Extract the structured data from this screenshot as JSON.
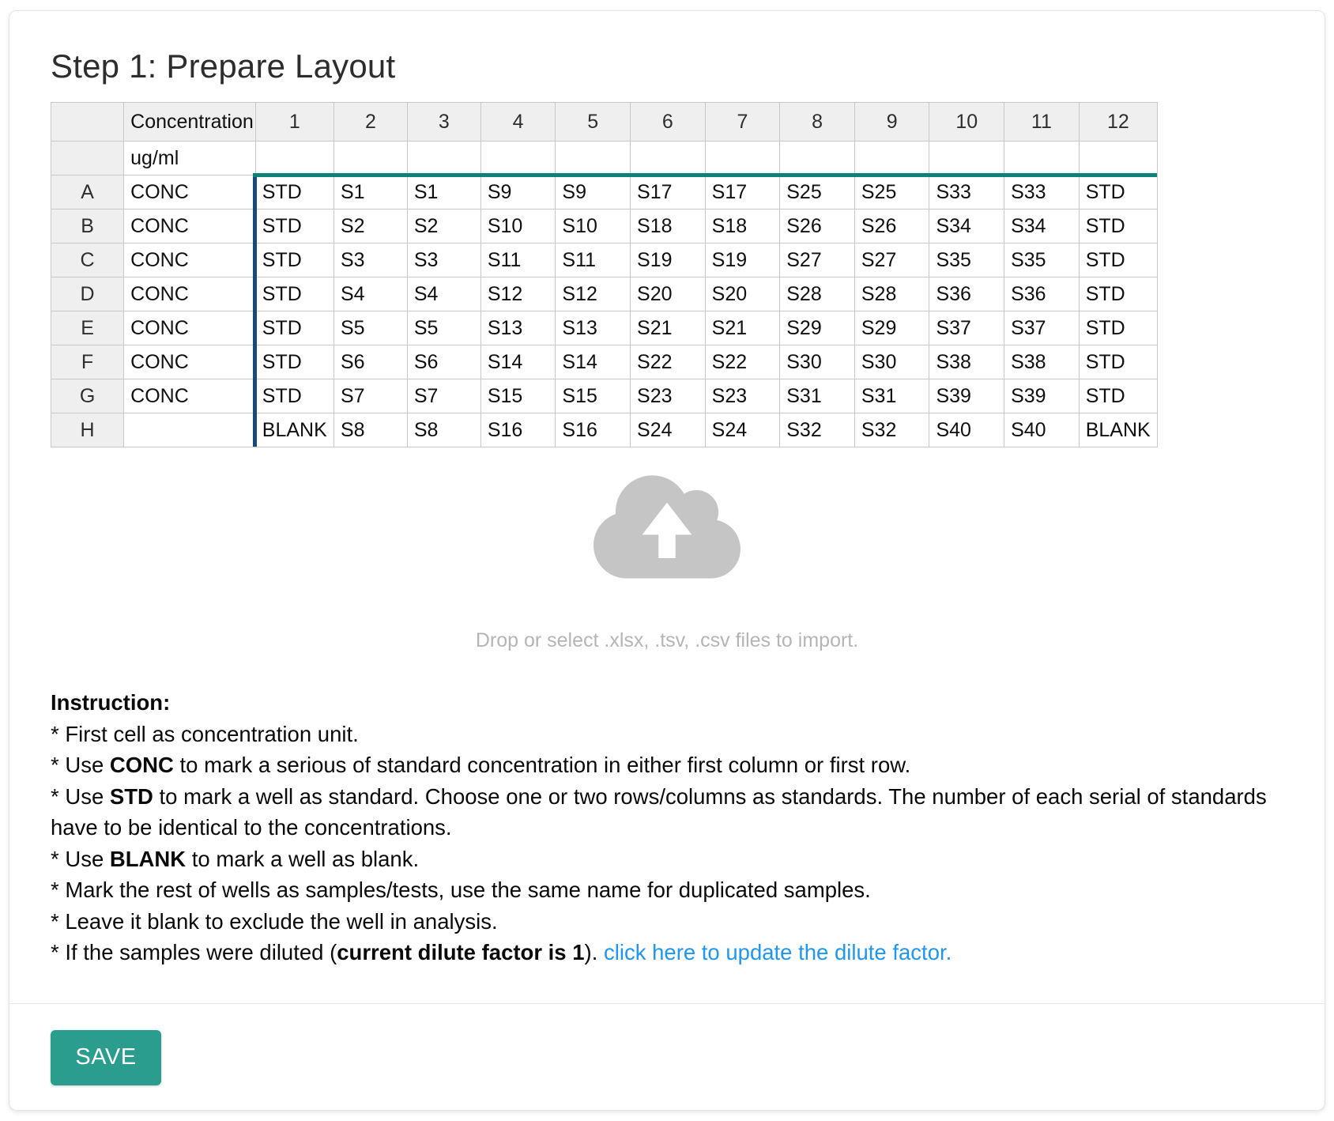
{
  "page": {
    "title": "Step 1: Prepare Layout"
  },
  "plate": {
    "concentration_header": "Concentration",
    "unit_value": "ug/ml",
    "columns": [
      "1",
      "2",
      "3",
      "4",
      "5",
      "6",
      "7",
      "8",
      "9",
      "10",
      "11",
      "12"
    ],
    "rows": [
      {
        "label": "A",
        "conc": "CONC",
        "wells": [
          "STD",
          "S1",
          "S1",
          "S9",
          "S9",
          "S17",
          "S17",
          "S25",
          "S25",
          "S33",
          "S33",
          "STD"
        ]
      },
      {
        "label": "B",
        "conc": "CONC",
        "wells": [
          "STD",
          "S2",
          "S2",
          "S10",
          "S10",
          "S18",
          "S18",
          "S26",
          "S26",
          "S34",
          "S34",
          "STD"
        ]
      },
      {
        "label": "C",
        "conc": "CONC",
        "wells": [
          "STD",
          "S3",
          "S3",
          "S11",
          "S11",
          "S19",
          "S19",
          "S27",
          "S27",
          "S35",
          "S35",
          "STD"
        ]
      },
      {
        "label": "D",
        "conc": "CONC",
        "wells": [
          "STD",
          "S4",
          "S4",
          "S12",
          "S12",
          "S20",
          "S20",
          "S28",
          "S28",
          "S36",
          "S36",
          "STD"
        ]
      },
      {
        "label": "E",
        "conc": "CONC",
        "wells": [
          "STD",
          "S5",
          "S5",
          "S13",
          "S13",
          "S21",
          "S21",
          "S29",
          "S29",
          "S37",
          "S37",
          "STD"
        ]
      },
      {
        "label": "F",
        "conc": "CONC",
        "wells": [
          "STD",
          "S6",
          "S6",
          "S14",
          "S14",
          "S22",
          "S22",
          "S30",
          "S30",
          "S38",
          "S38",
          "STD"
        ]
      },
      {
        "label": "G",
        "conc": "CONC",
        "wells": [
          "STD",
          "S7",
          "S7",
          "S15",
          "S15",
          "S23",
          "S23",
          "S31",
          "S31",
          "S39",
          "S39",
          "STD"
        ]
      },
      {
        "label": "H",
        "conc": "",
        "wells": [
          "BLANK",
          "S8",
          "S8",
          "S16",
          "S16",
          "S24",
          "S24",
          "S32",
          "S32",
          "S40",
          "S40",
          "BLANK"
        ]
      }
    ]
  },
  "dropzone": {
    "icon": "cloud-upload-icon",
    "hint": "Drop or select .xlsx, .tsv, .csv files to import."
  },
  "instructions": {
    "heading": "Instruction:",
    "items": [
      {
        "segments": [
          {
            "text": "* First cell as concentration unit.",
            "style": "normal"
          }
        ]
      },
      {
        "segments": [
          {
            "text": "* Use ",
            "style": "normal"
          },
          {
            "text": "CONC",
            "style": "bold"
          },
          {
            "text": " to mark a serious of standard concentration in either first column or first row.",
            "style": "normal"
          }
        ]
      },
      {
        "segments": [
          {
            "text": "* Use ",
            "style": "normal"
          },
          {
            "text": "STD",
            "style": "bold"
          },
          {
            "text": " to mark a well as standard. Choose one or two rows/columns as standards. The number of each serial of standards have to be identical to the concentrations.",
            "style": "normal"
          }
        ]
      },
      {
        "segments": [
          {
            "text": "* Use ",
            "style": "normal"
          },
          {
            "text": "BLANK",
            "style": "bold"
          },
          {
            "text": " to mark a well as blank.",
            "style": "normal"
          }
        ]
      },
      {
        "segments": [
          {
            "text": "* Mark the rest of wells as samples/tests, use the same name for duplicated samples.",
            "style": "normal"
          }
        ]
      },
      {
        "segments": [
          {
            "text": "* Leave it blank to exclude the well in analysis.",
            "style": "normal"
          }
        ]
      },
      {
        "segments": [
          {
            "text": "* If the samples were diluted (",
            "style": "normal"
          },
          {
            "text": "current dilute factor is 1",
            "style": "bold"
          },
          {
            "text": "). ",
            "style": "normal"
          },
          {
            "text": "click here to update the dilute factor.",
            "style": "link"
          }
        ]
      }
    ]
  },
  "save_label": "SAVE",
  "colors": {
    "accent_teal": "#2a9d8f",
    "selection_top_border": "#0d8377",
    "selection_left_border": "#17497a",
    "link_blue": "#1e97f3",
    "header_gray": "#efefef",
    "grid_border": "#c8c8c8",
    "icon_gray": "#c5c5c5"
  }
}
